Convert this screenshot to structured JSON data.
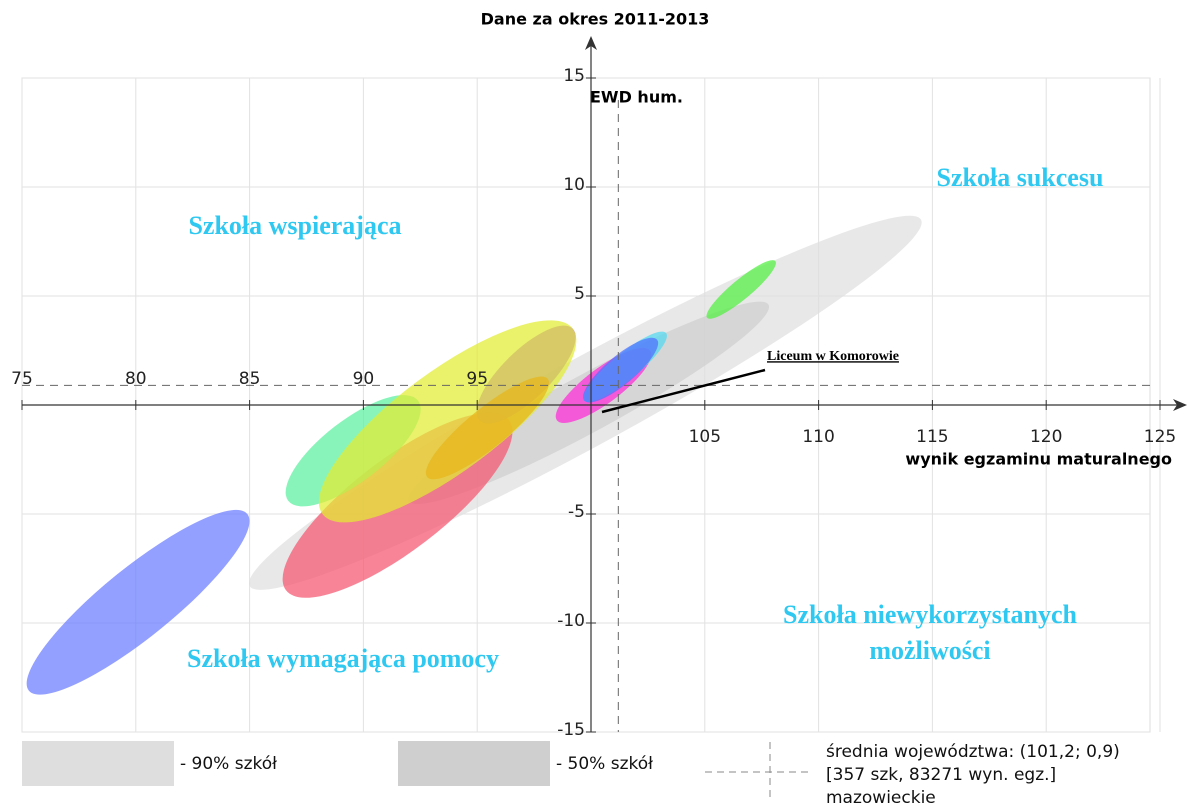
{
  "chart_data": {
    "type": "ellipse",
    "title": "Dane za okres 2011-2013",
    "y_label": "EWD hum.",
    "x_label": "wynik egzaminu maturalnego",
    "xlim": [
      75,
      125
    ],
    "ylim": [
      -15,
      15
    ],
    "xticks": [
      75,
      80,
      85,
      90,
      95,
      105,
      110,
      115,
      120,
      125
    ],
    "yticks": [
      -15,
      -10,
      -5,
      5,
      10,
      15
    ],
    "yaxis_x": 100,
    "grid": true,
    "mean_x": 101.2,
    "mean_y": 0.9,
    "mean_lines": [
      "średnia województwa: (101,2; 0,9)",
      "[357 szk, 83271 wyn. egz.]",
      "mazowieckie"
    ],
    "quadrants": [
      "Szkoła wspierająca",
      "Szkoła sukcesu",
      "Szkoła wymagająca pomocy",
      "Szkoła niewykorzystanych",
      "możliwości"
    ],
    "annotation": "Liceum w Komorowie",
    "series": [
      {
        "name": "- 90% szkół",
        "color": "#dedede",
        "x": [
          85.0,
          114.5
        ],
        "values": [
          -8.3,
          8.5
        ],
        "size": 2.0
      },
      {
        "name": "- 50% szkół",
        "color": "#cfcfcf",
        "x": [
          92.0,
          107.8
        ],
        "values": [
          -4.4,
          4.6
        ],
        "size": 1.3
      },
      {
        "color": "#6a7cff",
        "x": [
          75.3,
          84.9
        ],
        "values": [
          -13.1,
          -5.0
        ],
        "size": 1.6
      },
      {
        "color": "#f5566f",
        "x": [
          86.6,
          96.4
        ],
        "values": [
          -8.5,
          -0.7
        ],
        "size": 2.1
      },
      {
        "color": "#a040f0",
        "x": [
          95.1,
          99.2
        ],
        "values": [
          -0.7,
          3.5
        ],
        "size": 1.1
      },
      {
        "color": "#5cf0a0",
        "x": [
          86.7,
          92.4
        ],
        "values": [
          -4.4,
          0.2
        ],
        "size": 1.4
      },
      {
        "color": "#e2ec30",
        "x": [
          88.2,
          99.2
        ],
        "values": [
          -5.0,
          3.5
        ],
        "size": 2.3
      },
      {
        "color": "#e8b61a",
        "x": [
          92.8,
          98.1
        ],
        "values": [
          -3.3,
          1.2
        ],
        "size": 0.9
      },
      {
        "color": "#ff2ad8",
        "x": [
          98.5,
          102.6
        ],
        "values": [
          -0.7,
          2.5
        ],
        "size": 0.8
      },
      {
        "color": "#50d8f0",
        "x": [
          99.7,
          103.3
        ],
        "values": [
          0.2,
          3.3
        ],
        "size": 0.6
      },
      {
        "color": "#5070ff",
        "x": [
          99.7,
          102.9
        ],
        "values": [
          0.2,
          3.0
        ],
        "size": 0.65
      },
      {
        "color": "#50ee40",
        "x": [
          105.1,
          108.1
        ],
        "values": [
          4.0,
          6.6
        ],
        "size": 0.45
      }
    ]
  }
}
